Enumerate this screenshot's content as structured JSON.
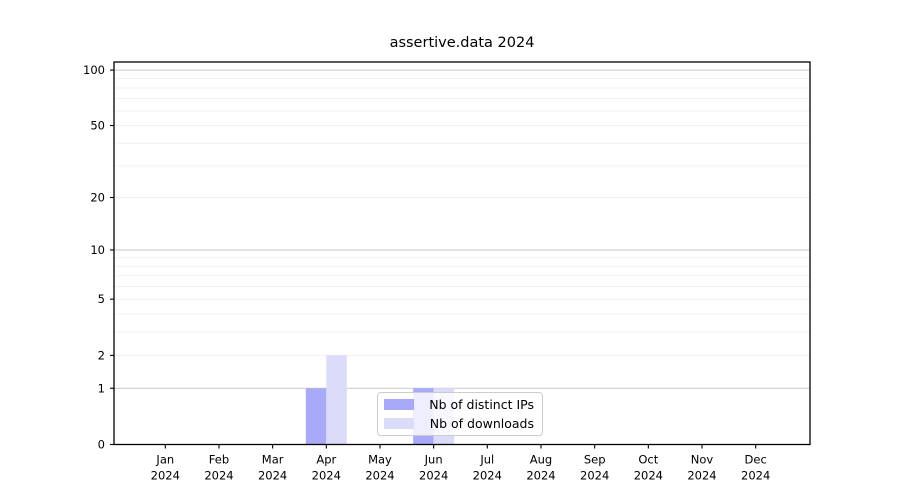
{
  "figure": {
    "title": "assertive.data 2024"
  },
  "chart_data": {
    "type": "bar",
    "title": "assertive.data 2024",
    "categories": [
      "Jan",
      "Feb",
      "Mar",
      "Apr",
      "May",
      "Jun",
      "Jul",
      "Aug",
      "Sep",
      "Oct",
      "Nov",
      "Dec"
    ],
    "year_label": "2024",
    "series": [
      {
        "name": "Nb of distinct IPs",
        "color": "#a9a9fa",
        "values": [
          0,
          0,
          0,
          1,
          0,
          1,
          0,
          0,
          0,
          0,
          0,
          0
        ]
      },
      {
        "name": "Nb of downloads",
        "color": "#dbdbfa",
        "values": [
          0,
          0,
          0,
          2,
          0,
          1,
          0,
          0,
          0,
          0,
          0,
          0
        ]
      }
    ],
    "yscale": "log1p",
    "ylim": [
      0,
      111
    ],
    "yticks": [
      0,
      1,
      2,
      5,
      10,
      20,
      50,
      100
    ],
    "major_gridlines": [
      1,
      10,
      100
    ],
    "minor_gridlines": [
      2,
      3,
      4,
      5,
      6,
      7,
      8,
      9,
      20,
      30,
      40,
      50,
      60,
      70,
      80,
      90
    ],
    "grid": true,
    "legend_position": "lower center",
    "colors": {
      "axis": "#000000",
      "text": "#000000",
      "grid_major": "#c9c9c9",
      "grid_minor": "#efefef",
      "legend_border": "#cccccc"
    }
  }
}
